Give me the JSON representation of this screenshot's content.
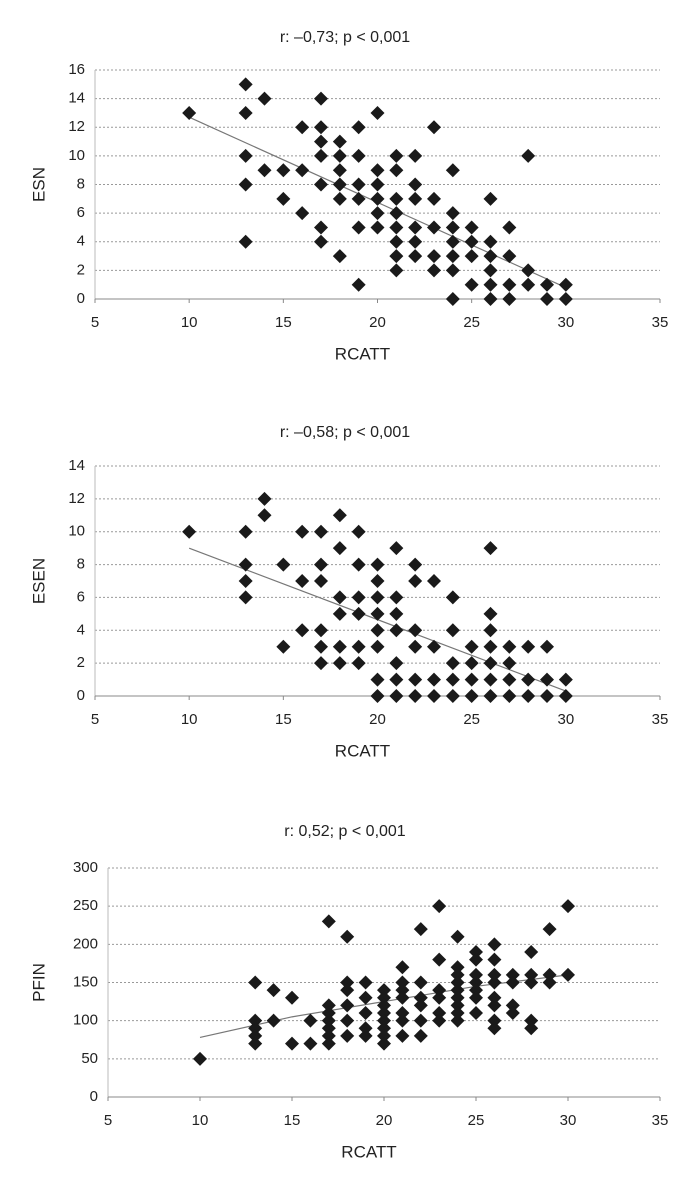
{
  "chart_data": [
    {
      "type": "scatter",
      "title": "r: –0,73; p < 0,001",
      "x_label": "RCATT",
      "y_label": "ESN",
      "color": "#1a1a1a",
      "grid": true,
      "xlim": [
        5,
        35
      ],
      "xticks": [
        5,
        10,
        15,
        20,
        25,
        30,
        35
      ],
      "ylim": [
        0,
        16
      ],
      "yticks": [
        0,
        2,
        4,
        6,
        8,
        10,
        12,
        14,
        16
      ],
      "x": [
        10,
        13,
        13,
        13,
        13,
        13,
        14,
        14,
        15,
        15,
        16,
        16,
        16,
        17,
        17,
        17,
        17,
        17,
        17,
        17,
        18,
        18,
        18,
        18,
        18,
        18,
        19,
        19,
        19,
        19,
        19,
        19,
        20,
        20,
        20,
        20,
        20,
        20,
        21,
        21,
        21,
        21,
        21,
        21,
        21,
        21,
        22,
        22,
        22,
        22,
        22,
        22,
        23,
        23,
        23,
        23,
        23,
        24,
        24,
        24,
        24,
        24,
        24,
        24,
        25,
        25,
        25,
        25,
        26,
        26,
        26,
        26,
        26,
        26,
        27,
        27,
        27,
        27,
        28,
        28,
        28,
        29,
        29,
        30,
        30
      ],
      "values": [
        13,
        15,
        13,
        10,
        8,
        4,
        14,
        9,
        9,
        7,
        12,
        9,
        6,
        14,
        12,
        11,
        10,
        8,
        5,
        4,
        11,
        10,
        9,
        8,
        7,
        3,
        12,
        10,
        8,
        7,
        5,
        1,
        13,
        9,
        8,
        7,
        6,
        5,
        10,
        9,
        7,
        6,
        5,
        4,
        3,
        2,
        10,
        8,
        7,
        5,
        4,
        3,
        12,
        7,
        5,
        3,
        2,
        9,
        6,
        5,
        4,
        3,
        2,
        0,
        5,
        4,
        3,
        1,
        7,
        4,
        3,
        2,
        1,
        0,
        5,
        3,
        1,
        0,
        10,
        2,
        1,
        1,
        0,
        1,
        0
      ],
      "trendline": {
        "x": [
          10,
          30
        ],
        "y": [
          12.7,
          0.8
        ]
      }
    },
    {
      "type": "scatter",
      "title": "r: –0,58; p < 0,001",
      "x_label": "RCATT",
      "y_label": "ESEN",
      "color": "#1a1a1a",
      "grid": true,
      "xlim": [
        5,
        35
      ],
      "xticks": [
        5,
        10,
        15,
        20,
        25,
        30,
        35
      ],
      "ylim": [
        0,
        14
      ],
      "yticks": [
        0,
        2,
        4,
        6,
        8,
        10,
        12,
        14
      ],
      "x": [
        10,
        13,
        13,
        13,
        13,
        14,
        14,
        15,
        15,
        16,
        16,
        16,
        17,
        17,
        17,
        17,
        17,
        17,
        18,
        18,
        18,
        18,
        18,
        18,
        19,
        19,
        19,
        19,
        19,
        19,
        20,
        20,
        20,
        20,
        20,
        20,
        20,
        20,
        21,
        21,
        21,
        21,
        21,
        21,
        21,
        22,
        22,
        22,
        22,
        22,
        22,
        23,
        23,
        23,
        23,
        24,
        24,
        24,
        24,
        24,
        25,
        25,
        25,
        25,
        26,
        26,
        26,
        26,
        26,
        26,
        26,
        27,
        27,
        27,
        27,
        28,
        28,
        28,
        29,
        29,
        29,
        30,
        30
      ],
      "values": [
        10,
        10,
        8,
        7,
        6,
        12,
        11,
        8,
        3,
        10,
        7,
        4,
        10,
        8,
        7,
        4,
        3,
        2,
        11,
        9,
        6,
        5,
        3,
        2,
        10,
        8,
        6,
        5,
        3,
        2,
        8,
        7,
        6,
        5,
        4,
        3,
        1,
        0,
        9,
        6,
        5,
        4,
        2,
        1,
        0,
        8,
        7,
        4,
        3,
        1,
        0,
        7,
        3,
        1,
        0,
        6,
        4,
        2,
        1,
        0,
        3,
        2,
        1,
        0,
        9,
        5,
        4,
        3,
        2,
        1,
        0,
        3,
        2,
        1,
        0,
        3,
        1,
        0,
        3,
        1,
        0,
        1,
        0
      ],
      "trendline": {
        "x": [
          10,
          30
        ],
        "y": [
          9,
          0.3
        ]
      }
    },
    {
      "type": "scatter",
      "title": "r: 0,52; p < 0,001",
      "x_label": "RCATT",
      "y_label": "PFIN",
      "color": "#1a1a1a",
      "grid": true,
      "xlim": [
        5,
        35
      ],
      "xticks": [
        5,
        10,
        15,
        20,
        25,
        30,
        35
      ],
      "ylim": [
        0,
        300
      ],
      "yticks": [
        0,
        50,
        100,
        150,
        200,
        250,
        300
      ],
      "x": [
        10,
        13,
        13,
        13,
        13,
        13,
        14,
        14,
        15,
        15,
        16,
        16,
        17,
        17,
        17,
        17,
        17,
        17,
        17,
        18,
        18,
        18,
        18,
        18,
        18,
        19,
        19,
        19,
        19,
        19,
        20,
        20,
        20,
        20,
        20,
        20,
        20,
        20,
        21,
        21,
        21,
        21,
        21,
        21,
        21,
        22,
        22,
        22,
        22,
        22,
        22,
        23,
        23,
        23,
        23,
        23,
        23,
        24,
        24,
        24,
        24,
        24,
        24,
        24,
        24,
        24,
        25,
        25,
        25,
        25,
        25,
        25,
        25,
        26,
        26,
        26,
        26,
        26,
        26,
        26,
        26,
        27,
        27,
        27,
        27,
        28,
        28,
        28,
        28,
        28,
        29,
        29,
        29,
        30,
        30
      ],
      "values": [
        50,
        150,
        100,
        90,
        80,
        70,
        140,
        100,
        130,
        70,
        100,
        70,
        230,
        120,
        110,
        100,
        90,
        80,
        70,
        210,
        150,
        140,
        120,
        100,
        80,
        150,
        130,
        110,
        90,
        80,
        140,
        130,
        120,
        110,
        100,
        90,
        80,
        70,
        170,
        150,
        140,
        130,
        110,
        100,
        80,
        220,
        150,
        130,
        120,
        100,
        80,
        250,
        180,
        140,
        130,
        110,
        100,
        210,
        170,
        160,
        150,
        140,
        130,
        120,
        110,
        100,
        190,
        180,
        160,
        150,
        140,
        130,
        110,
        200,
        180,
        160,
        150,
        130,
        120,
        100,
        90,
        160,
        150,
        120,
        110,
        190,
        160,
        150,
        100,
        90,
        220,
        160,
        150,
        250,
        160
      ],
      "trendline": {
        "x": [
          10,
          15,
          20,
          25,
          30
        ],
        "y": [
          78,
          105,
          125,
          145,
          160
        ]
      }
    }
  ]
}
